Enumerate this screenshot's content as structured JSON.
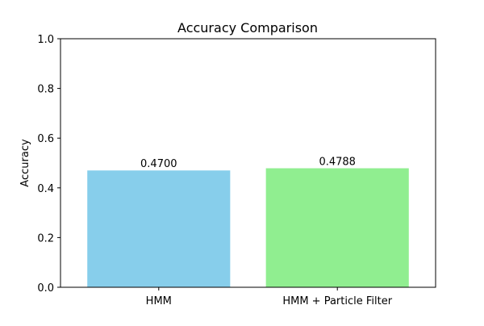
{
  "chart_data": {
    "type": "bar",
    "title": "Accuracy Comparison",
    "xlabel": "",
    "ylabel": "Accuracy",
    "categories": [
      "HMM",
      "HMM + Particle Filter"
    ],
    "values": [
      0.47,
      0.4788
    ],
    "data_labels": [
      "0.4700",
      "0.4788"
    ],
    "colors": [
      "#87CEEB",
      "#90EE90"
    ],
    "ylim": [
      0,
      1
    ],
    "yticks": [
      0,
      0.2,
      0.4,
      0.6,
      0.8,
      1
    ],
    "ytick_labels": [
      "0.0",
      "0.2",
      "0.4",
      "0.6",
      "0.8",
      "1.0"
    ],
    "grid": false,
    "legend": "none"
  }
}
